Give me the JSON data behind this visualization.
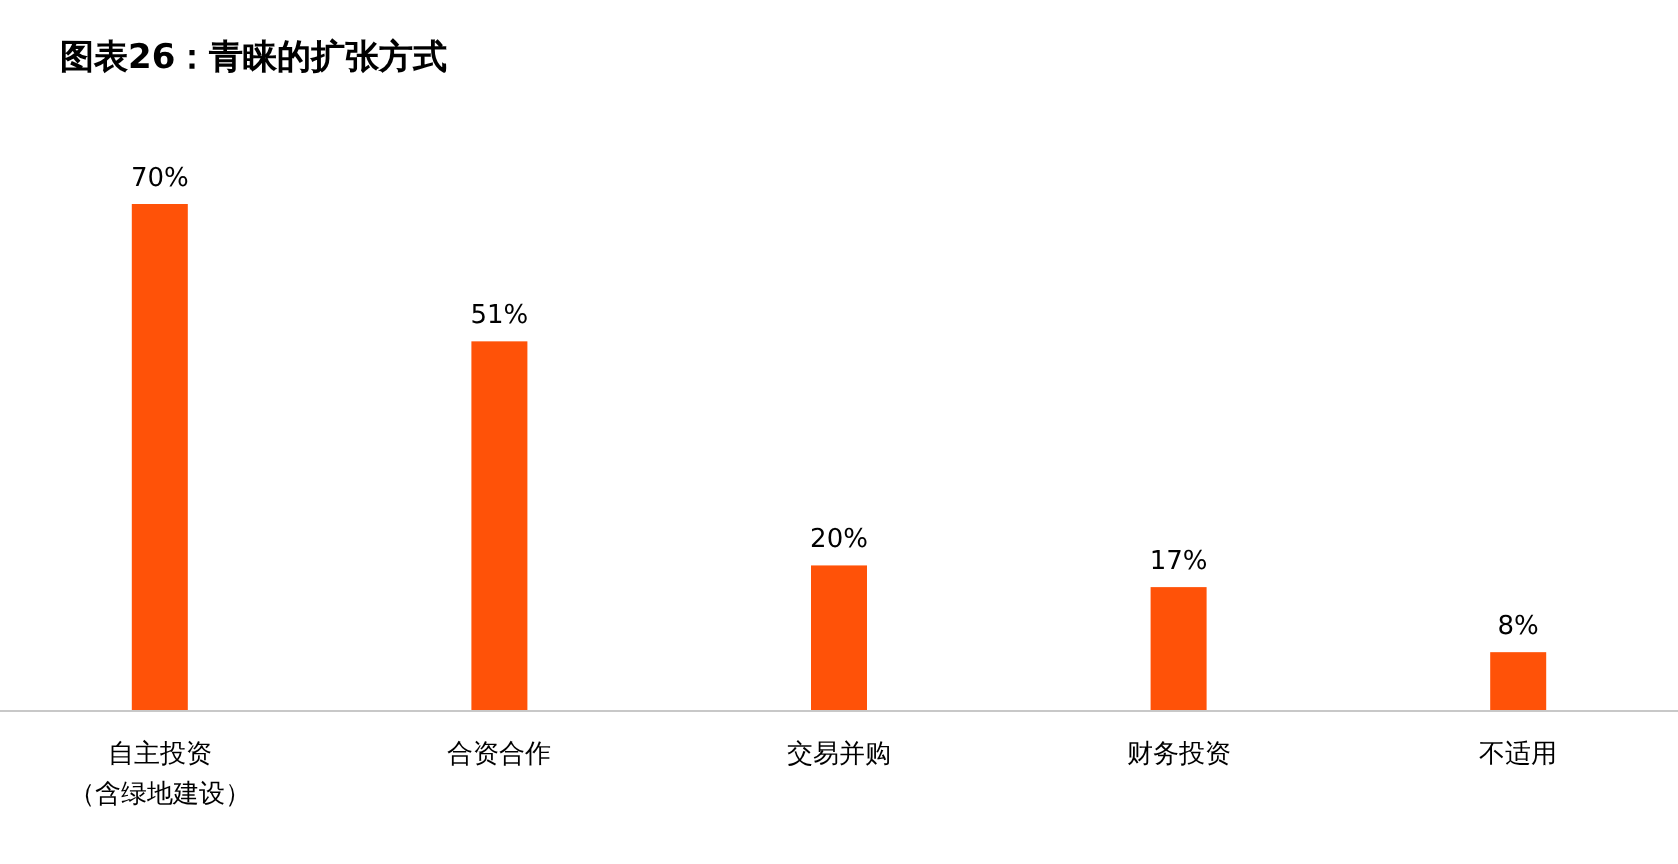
{
  "chart_data": {
    "type": "bar",
    "title": "图表26：青睐的扩张方式",
    "categories": [
      "自主投资（含绿地建设）",
      "合资合作",
      "交易并购",
      "财务投资",
      "不适用"
    ],
    "values": [
      70,
      51,
      20,
      17,
      8
    ],
    "value_labels": [
      "70%",
      "51%",
      "20%",
      "17%",
      "8%"
    ],
    "color": "#ff5208"
  }
}
